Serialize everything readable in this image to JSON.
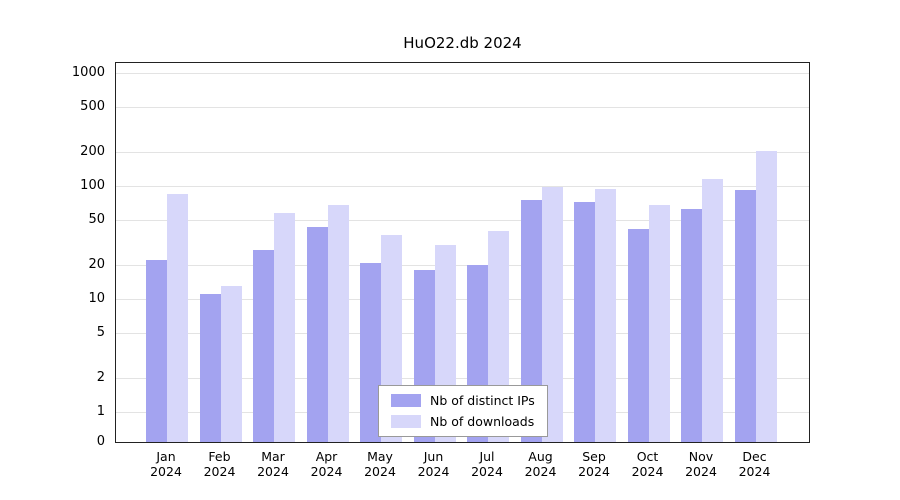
{
  "chart_data": {
    "type": "bar",
    "title": "HuO22.db 2024",
    "categories": [
      "Jan",
      "Feb",
      "Mar",
      "Apr",
      "May",
      "Jun",
      "Jul",
      "Aug",
      "Sep",
      "Oct",
      "Nov",
      "Dec"
    ],
    "year_label": "2024",
    "series": [
      {
        "name": "Nb of distinct IPs",
        "color": "#a3a3f0",
        "values": [
          22,
          11,
          27,
          43,
          21,
          18,
          20,
          75,
          72,
          42,
          62,
          92
        ]
      },
      {
        "name": "Nb of downloads",
        "color": "#d7d7fa",
        "values": [
          85,
          13,
          58,
          68,
          37,
          30,
          40,
          98,
          95,
          68,
          115,
          205
        ]
      }
    ],
    "yscale": "symlog",
    "yticks": [
      0,
      1,
      2,
      5,
      10,
      20,
      50,
      100,
      200,
      500,
      1000
    ],
    "ylim": [
      0,
      1000
    ],
    "xlabel": "",
    "ylabel": "",
    "grid": "horizontal-major",
    "legend_position": "bottom-center-inside",
    "background_color": "#ffffff",
    "gridline_color": "#e3e3e3"
  }
}
